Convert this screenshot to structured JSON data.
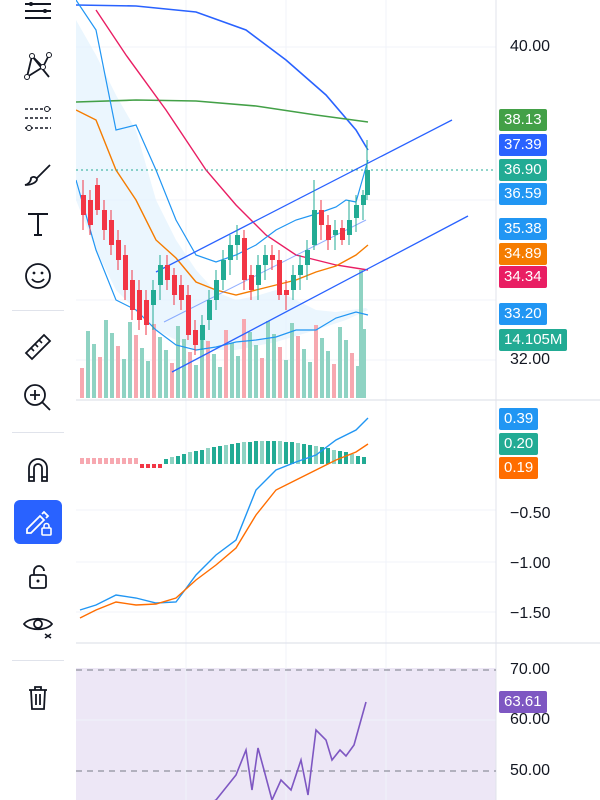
{
  "toolbar": {
    "tools": [
      {
        "name": "lines-menu-icon"
      },
      {
        "name": "pattern-tool-icon"
      },
      {
        "name": "fib-retracement-icon"
      },
      {
        "name": "brush-icon"
      },
      {
        "name": "text-tool-icon"
      },
      {
        "name": "emoji-icon"
      },
      {
        "name": "ruler-icon"
      },
      {
        "name": "zoom-in-icon"
      },
      {
        "name": "magnet-icon"
      },
      {
        "name": "stay-in-drawing-mode-icon",
        "active": true
      },
      {
        "name": "lock-drawings-icon"
      },
      {
        "name": "hide-drawings-icon"
      },
      {
        "name": "trash-icon"
      }
    ],
    "active_color": "#2962ff"
  },
  "price_pane": {
    "axis_labels": [
      "40.00",
      "32.00"
    ],
    "tags": [
      {
        "value": "38.13",
        "color": "#43a047"
      },
      {
        "value": "37.39",
        "color": "#2962ff"
      },
      {
        "value": "36.90",
        "color": "#22ab94"
      },
      {
        "value": "36.59",
        "color": "#2196f3"
      },
      {
        "value": "35.38",
        "color": "#2196f3"
      },
      {
        "value": "34.89",
        "color": "#f57c00"
      },
      {
        "value": "34.34",
        "color": "#e91e63"
      },
      {
        "value": "33.20",
        "color": "#2196f3"
      },
      {
        "value": "14.105M",
        "color": "#22ab94"
      }
    ],
    "current_price": 36.9
  },
  "macd_pane": {
    "axis_labels": [
      "−0.50",
      "−1.00",
      "−1.50"
    ],
    "tags": [
      {
        "value": "0.39",
        "color": "#2196f3"
      },
      {
        "value": "0.20",
        "color": "#22ab94"
      },
      {
        "value": "0.19",
        "color": "#ff6d00"
      }
    ]
  },
  "rsi_pane": {
    "axis_labels": [
      "70.00",
      "60.00",
      "50.00"
    ],
    "tags": [
      {
        "value": "63.61",
        "color": "#7e57c2"
      }
    ],
    "band_color": "#ede7f6"
  },
  "colors": {
    "up": "#22ab94",
    "down": "#f23645",
    "volume_up": "#8fd3c3",
    "volume_down": "#f7a8b0"
  }
}
